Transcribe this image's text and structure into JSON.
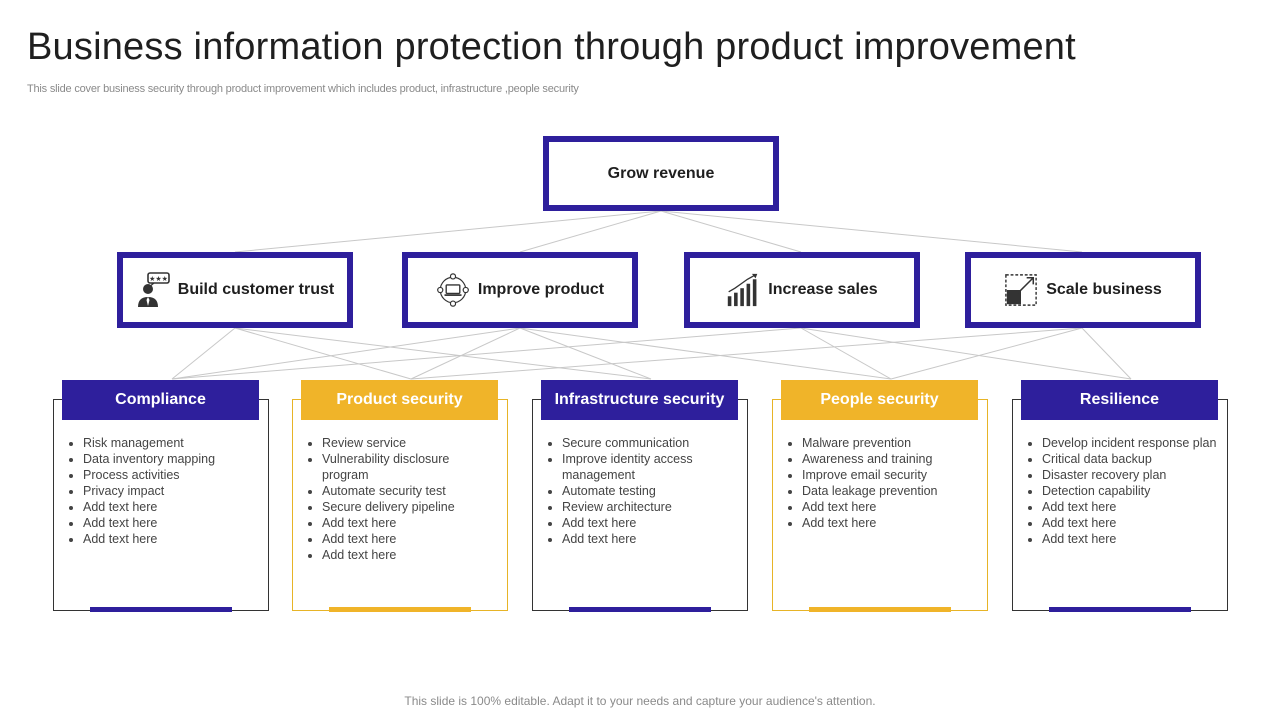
{
  "title": "Business information protection through product improvement",
  "subtitle": "This slide cover business security through product improvement which includes product, infrastructure ,people security",
  "root": {
    "label": "Grow revenue"
  },
  "goals": [
    {
      "label": "Build customer trust",
      "icon": "customer-review-icon"
    },
    {
      "label": "Improve product",
      "icon": "product-network-icon"
    },
    {
      "label": "Increase sales",
      "icon": "growth-bars-icon"
    },
    {
      "label": "Scale business",
      "icon": "scale-expand-icon"
    }
  ],
  "pillars": [
    {
      "title": "Compliance",
      "theme": "purple",
      "items": [
        "Risk management",
        "Data inventory  mapping",
        "Process activities",
        "Privacy impact",
        "Add text here",
        "Add text here",
        "Add text here"
      ]
    },
    {
      "title": "Product security",
      "theme": "gold",
      "items": [
        "Review  service",
        "Vulnerability disclosure program",
        "Automate security test",
        "Secure delivery pipeline",
        "Add text here",
        "Add text here",
        "Add text here"
      ]
    },
    {
      "title": "Infrastructure  security",
      "theme": "purple",
      "items": [
        "Secure communication",
        "Improve  identity access management",
        "Automate testing",
        "Review  architecture",
        "Add text here",
        "Add text here"
      ]
    },
    {
      "title": "People security",
      "theme": "gold",
      "items": [
        "Malware  prevention",
        "Awareness and training",
        "Improve  email security",
        "Data leakage prevention",
        "Add text here",
        "Add text here"
      ]
    },
    {
      "title": "Resilience",
      "theme": "purple",
      "items": [
        "Develop  incident response plan",
        "Critical data backup",
        "Disaster recovery  plan",
        "Detection capability",
        "Add text here",
        "Add text here",
        "Add text here"
      ]
    }
  ],
  "colors": {
    "purple": "#2e1f9c",
    "gold": "#f0b429",
    "connector": "#c8c8c8"
  },
  "footer": "This slide is 100% editable. Adapt it to your needs and capture your audience's attention."
}
